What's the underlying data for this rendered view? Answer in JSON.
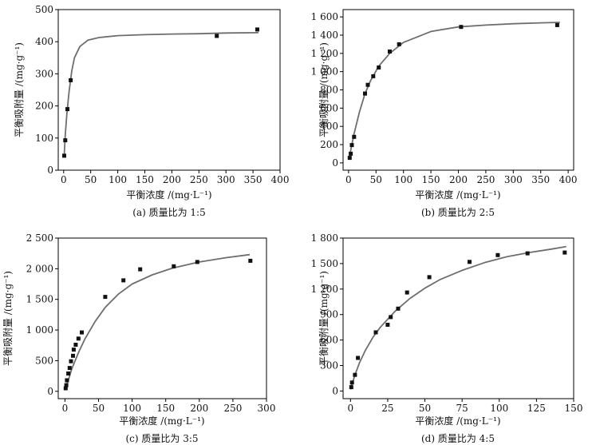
{
  "chart_data": [
    {
      "type": "scatter",
      "caption": "(a) 质量比为 1:5",
      "xlabel": "平衡浓度 /(mg·L⁻¹)",
      "ylabel": "平衡吸附量 /(mg·g⁻¹)",
      "xlim": [
        -10,
        400
      ],
      "ylim": [
        0,
        500
      ],
      "xticks": [
        0,
        50,
        100,
        150,
        200,
        250,
        300,
        350,
        400
      ],
      "yticks": [
        0,
        100,
        200,
        300,
        400,
        500
      ],
      "xtick_labels": [
        "0",
        "50",
        "100",
        "150",
        "200",
        "250",
        "300",
        "350",
        "400"
      ],
      "ytick_labels": [
        "0",
        "100",
        "200",
        "300",
        "400",
        "500"
      ],
      "points": [
        [
          1,
          45
        ],
        [
          3,
          93
        ],
        [
          7,
          190
        ],
        [
          13,
          280
        ],
        [
          283,
          418
        ],
        [
          358,
          438
        ]
      ],
      "fit": [
        [
          1,
          47
        ],
        [
          3,
          110
        ],
        [
          6,
          175
        ],
        [
          10,
          245
        ],
        [
          15,
          310
        ],
        [
          20,
          350
        ],
        [
          30,
          385
        ],
        [
          45,
          405
        ],
        [
          65,
          413
        ],
        [
          100,
          419
        ],
        [
          150,
          422
        ],
        [
          200,
          424
        ],
        [
          250,
          425
        ],
        [
          300,
          427
        ],
        [
          360,
          428
        ]
      ],
      "grid": false
    },
    {
      "type": "scatter",
      "caption": "(b) 质量比为 2:5",
      "xlabel": "平衡浓度 /(mg·L⁻¹)",
      "ylabel": "平衡吸附量 /(mg·g⁻¹)",
      "xlim": [
        -10,
        410
      ],
      "ylim": [
        -80,
        1680
      ],
      "xticks": [
        0,
        50,
        100,
        150,
        200,
        250,
        300,
        350,
        400
      ],
      "yticks": [
        0,
        200,
        400,
        600,
        800,
        1000,
        1200,
        1400,
        1600
      ],
      "xtick_labels": [
        "0",
        "50",
        "100",
        "150",
        "200",
        "250",
        "300",
        "350",
        "400"
      ],
      "ytick_labels": [
        "0",
        "200",
        "400",
        "600",
        "800",
        "1 000",
        "1 200",
        "1 400",
        "1 600"
      ],
      "points": [
        [
          2,
          55
        ],
        [
          4,
          100
        ],
        [
          6,
          195
        ],
        [
          10,
          285
        ],
        [
          30,
          760
        ],
        [
          35,
          855
        ],
        [
          45,
          950
        ],
        [
          55,
          1045
        ],
        [
          75,
          1220
        ],
        [
          92,
          1300
        ],
        [
          205,
          1490
        ],
        [
          380,
          1510
        ]
      ],
      "fit": [
        [
          1,
          40
        ],
        [
          5,
          170
        ],
        [
          10,
          320
        ],
        [
          20,
          560
        ],
        [
          30,
          760
        ],
        [
          40,
          900
        ],
        [
          55,
          1060
        ],
        [
          75,
          1200
        ],
        [
          100,
          1320
        ],
        [
          150,
          1440
        ],
        [
          200,
          1490
        ],
        [
          250,
          1510
        ],
        [
          300,
          1525
        ],
        [
          350,
          1535
        ],
        [
          385,
          1540
        ]
      ],
      "grid": false
    },
    {
      "type": "scatter",
      "caption": "(c) 质量比为 3:5",
      "xlabel": "平衡浓度 /(mg·L⁻¹)",
      "ylabel": "平衡吸附量 /(mg·g⁻¹)",
      "xlim": [
        -10,
        300
      ],
      "ylim": [
        -120,
        2500
      ],
      "xticks": [
        0,
        50,
        100,
        150,
        200,
        250,
        300
      ],
      "yticks": [
        0,
        500,
        1000,
        1500,
        2000,
        2500
      ],
      "xtick_labels": [
        "0",
        "50",
        "100",
        "150",
        "200",
        "250",
        "300"
      ],
      "ytick_labels": [
        "0",
        "500",
        "1 000",
        "1 500",
        "2 000",
        "2 500"
      ],
      "points": [
        [
          1,
          50
        ],
        [
          2,
          100
        ],
        [
          3,
          180
        ],
        [
          5,
          290
        ],
        [
          7,
          380
        ],
        [
          9,
          490
        ],
        [
          12,
          580
        ],
        [
          13,
          680
        ],
        [
          16,
          760
        ],
        [
          20,
          860
        ],
        [
          25,
          960
        ],
        [
          60,
          1540
        ],
        [
          87,
          1810
        ],
        [
          112,
          1990
        ],
        [
          162,
          2040
        ],
        [
          197,
          2110
        ],
        [
          276,
          2130
        ]
      ],
      "fit": [
        [
          0,
          20
        ],
        [
          5,
          180
        ],
        [
          10,
          360
        ],
        [
          20,
          630
        ],
        [
          30,
          860
        ],
        [
          45,
          1140
        ],
        [
          60,
          1370
        ],
        [
          80,
          1590
        ],
        [
          100,
          1750
        ],
        [
          130,
          1900
        ],
        [
          160,
          2010
        ],
        [
          200,
          2110
        ],
        [
          240,
          2180
        ],
        [
          275,
          2230
        ]
      ],
      "grid": false
    },
    {
      "type": "scatter",
      "caption": "(d) 质量比为 4:5",
      "xlabel": "平衡浓度 /(mg·L⁻¹)",
      "ylabel": "平衡吸附量 /(mg·g⁻¹)",
      "xlim": [
        -5,
        150
      ],
      "ylim": [
        -90,
        1800
      ],
      "xticks": [
        0,
        25,
        50,
        75,
        100,
        125,
        150
      ],
      "yticks": [
        0,
        300,
        600,
        900,
        1200,
        1500,
        1800
      ],
      "xtick_labels": [
        "0",
        "25",
        "50",
        "75",
        "100",
        "125",
        "150"
      ],
      "ytick_labels": [
        "0",
        "300",
        "600",
        "900",
        "1 200",
        "1 500",
        "1 800"
      ],
      "points": [
        [
          0.5,
          45
        ],
        [
          1,
          100
        ],
        [
          3,
          190
        ],
        [
          5,
          390
        ],
        [
          17,
          690
        ],
        [
          25,
          780
        ],
        [
          27,
          870
        ],
        [
          32,
          970
        ],
        [
          38,
          1160
        ],
        [
          53,
          1340
        ],
        [
          80,
          1520
        ],
        [
          99,
          1600
        ],
        [
          119,
          1620
        ],
        [
          144,
          1630
        ]
      ],
      "fit": [
        [
          0,
          20
        ],
        [
          3,
          190
        ],
        [
          6,
          330
        ],
        [
          10,
          480
        ],
        [
          15,
          630
        ],
        [
          20,
          750
        ],
        [
          30,
          940
        ],
        [
          40,
          1090
        ],
        [
          50,
          1210
        ],
        [
          60,
          1310
        ],
        [
          75,
          1420
        ],
        [
          90,
          1510
        ],
        [
          105,
          1580
        ],
        [
          120,
          1630
        ],
        [
          135,
          1670
        ],
        [
          145,
          1700
        ]
      ],
      "grid": false
    }
  ]
}
